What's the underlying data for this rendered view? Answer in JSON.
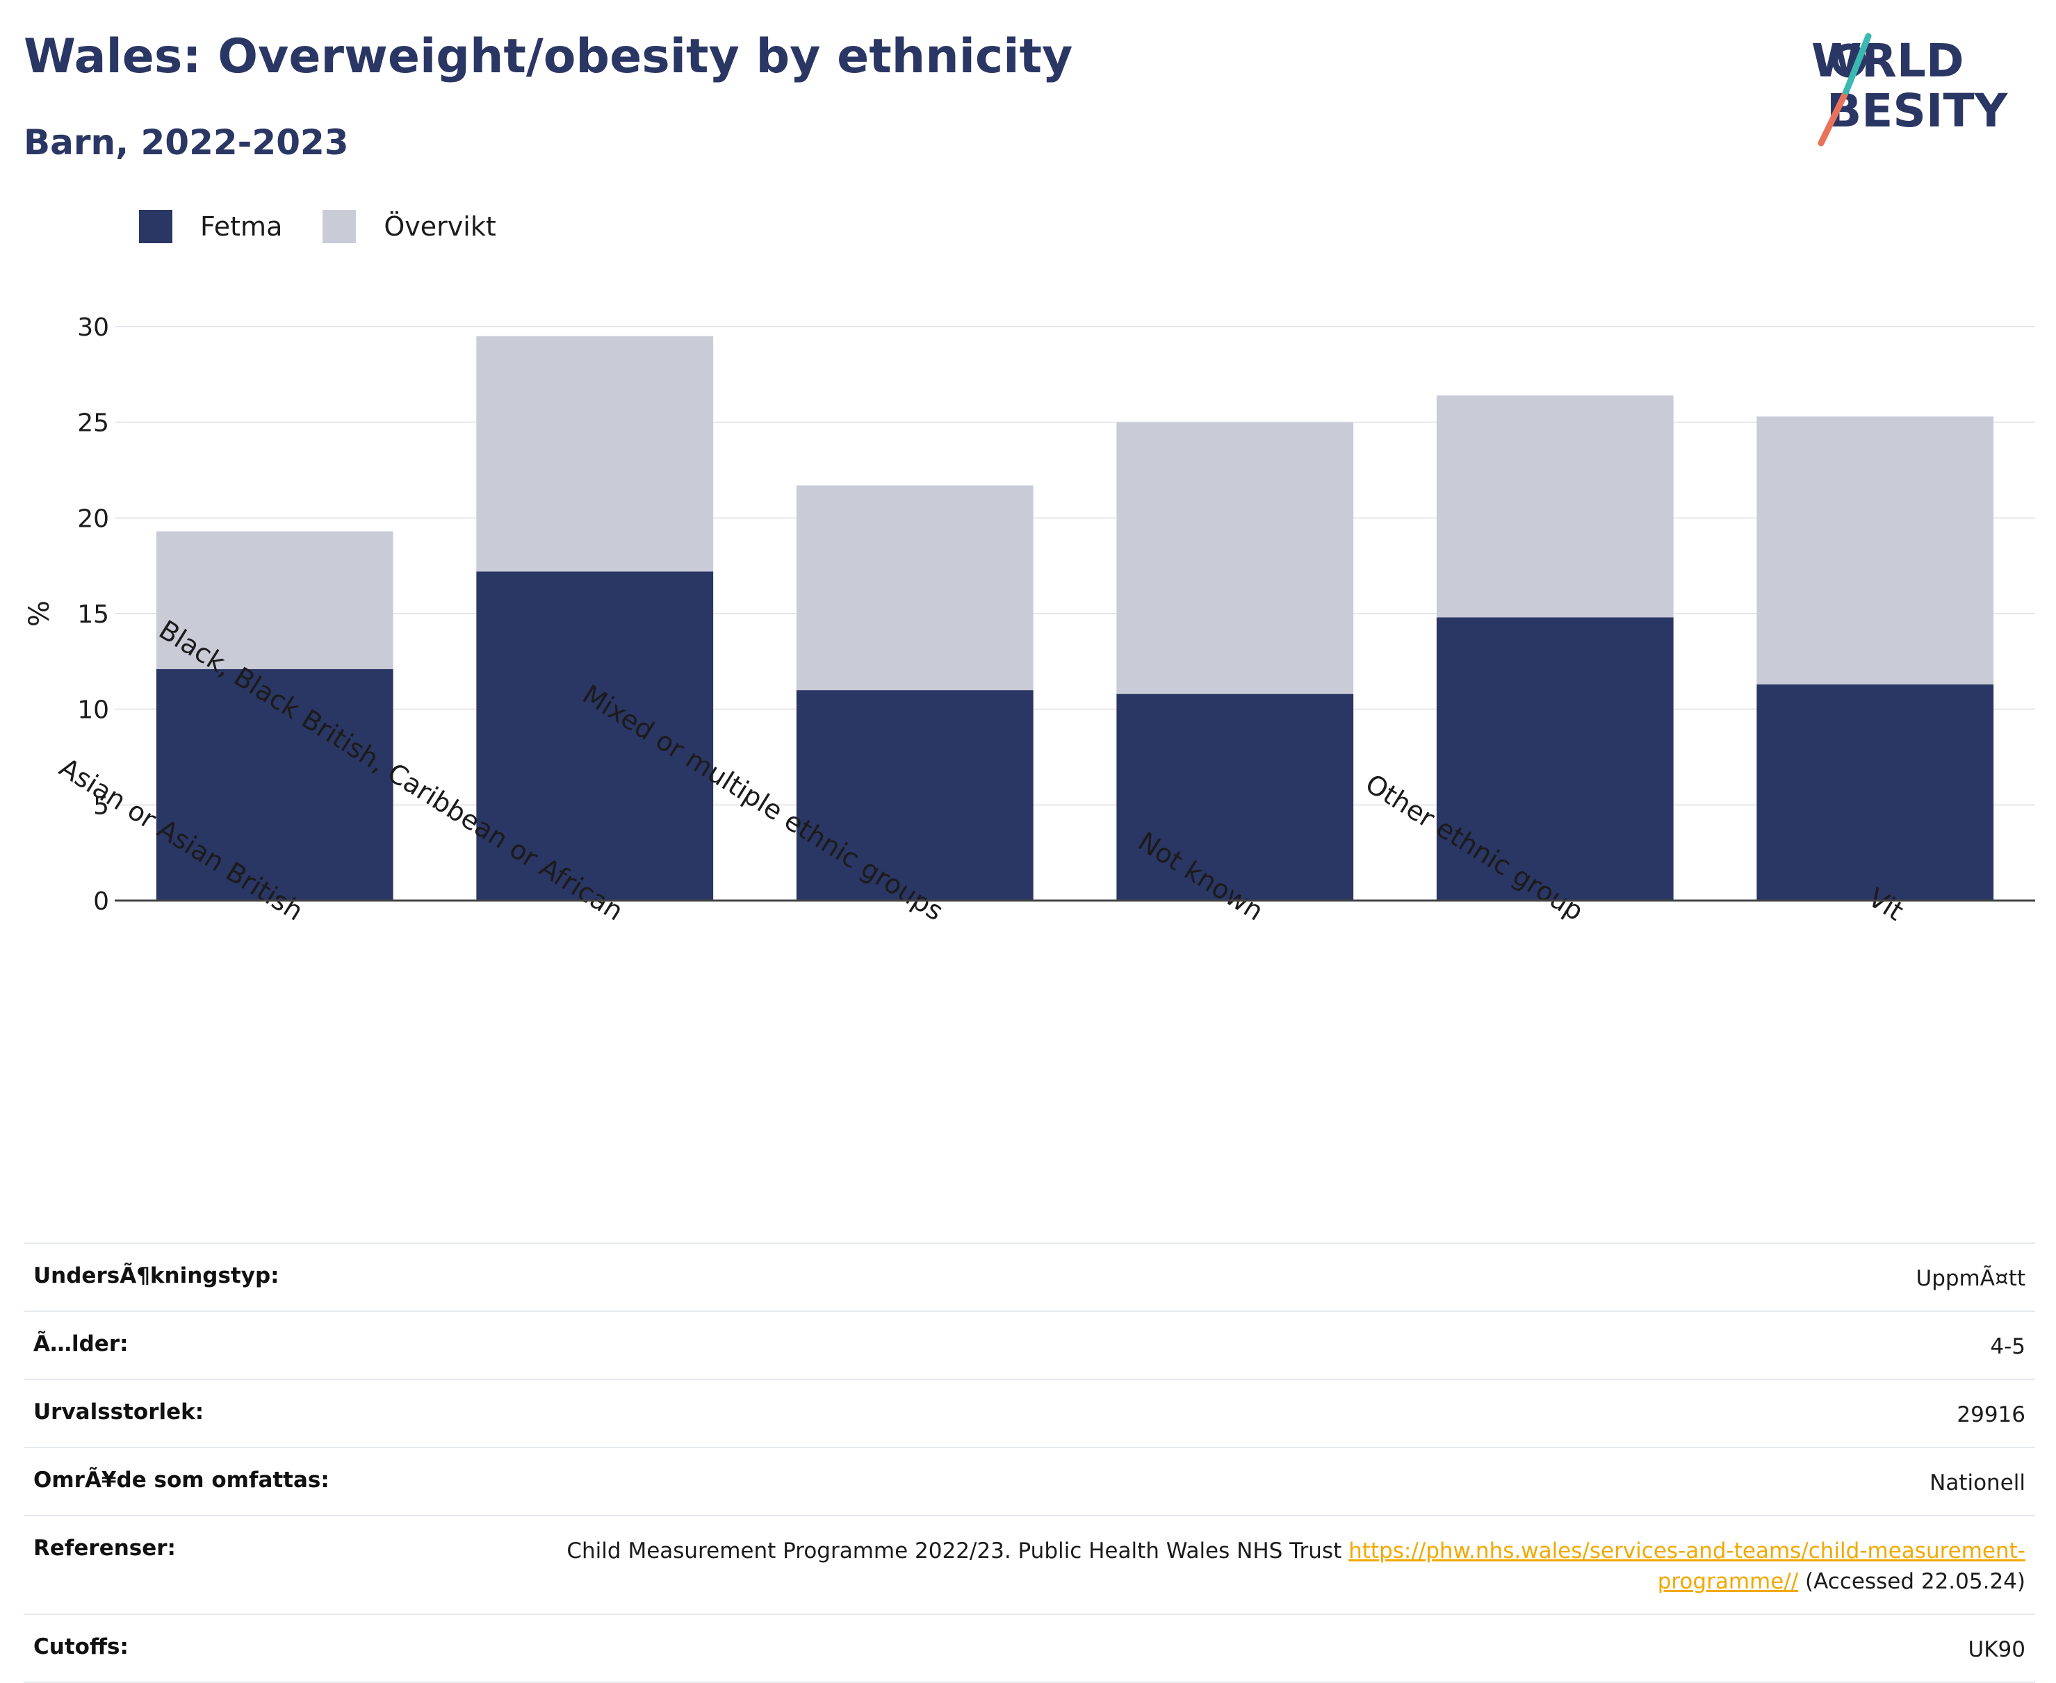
{
  "header": {
    "title": "Wales: Overweight/obesity by ethnicity",
    "subtitle": "Barn, 2022-2023"
  },
  "logo": {
    "line1": "WORLD",
    "line2": "OBESITY"
  },
  "legend": [
    {
      "label": "Fetma",
      "color": "#2a3663"
    },
    {
      "label": "Övervikt",
      "color": "#c9cbd7"
    }
  ],
  "chart_data": {
    "type": "bar",
    "stacked": true,
    "title": "",
    "xlabel": "",
    "ylabel": "%",
    "ylim": [
      0,
      30
    ],
    "yticks": [
      0,
      5,
      10,
      15,
      20,
      25,
      30
    ],
    "grid": true,
    "legend_position": "top-left",
    "categories": [
      "Asian or Asian British",
      "Black, Black British, Caribbean or African",
      "Mixed or multiple ethnic groups",
      "Not known",
      "Other ethnic group",
      "Vit"
    ],
    "series": [
      {
        "name": "Fetma",
        "color": "#2a3663",
        "values": [
          12.1,
          17.2,
          11.0,
          10.8,
          14.8,
          11.3
        ]
      },
      {
        "name": "Övervikt",
        "color": "#c9cbd7",
        "values": [
          7.2,
          12.3,
          10.7,
          14.2,
          11.6,
          14.0
        ]
      }
    ]
  },
  "meta": {
    "rows": [
      {
        "label": "UndersÃ¶kningstyp:",
        "value": "UppmÃ¤tt"
      },
      {
        "label": "Ã…lder:",
        "value": "4-5"
      },
      {
        "label": "Urvalsstorlek:",
        "value": "29916"
      },
      {
        "label": "OmrÃ¥de som omfattas:",
        "value": "Nationell"
      },
      {
        "label": "Referenser:",
        "value": "Child Measurement Programme 2022/23. Public Health Wales NHS Trust ",
        "link": "https://phw.nhs.wales/services-and-teams/child-measurement-programme//",
        "suffix": " (Accessed 22.05.24)"
      },
      {
        "label": "Cutoffs:",
        "value": "UK90"
      }
    ]
  }
}
